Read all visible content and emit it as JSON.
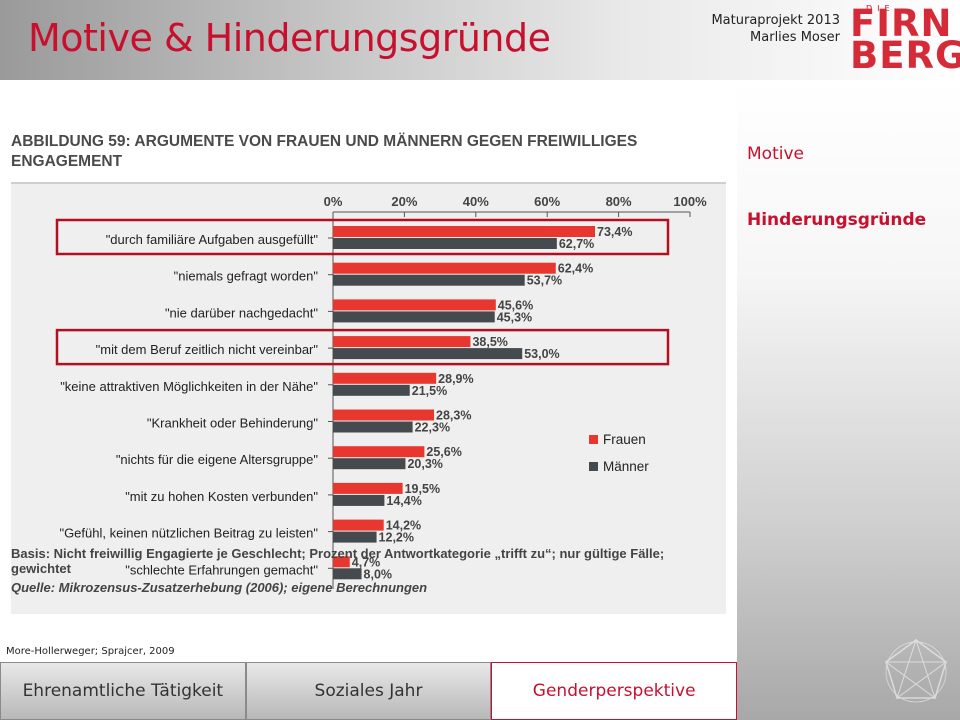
{
  "header": {
    "title": "Motive & Hinderungsgründe",
    "project_line1": "Maturaprojekt 2013",
    "project_line2": "Marlies Moser"
  },
  "logo": {
    "small_text": "DIE",
    "line1": "FIRN",
    "line2": "BERG"
  },
  "sidebar": {
    "items": [
      {
        "label": "Motive",
        "active": false
      },
      {
        "label": "Hinderungsgründe",
        "active": true
      }
    ]
  },
  "figure": {
    "title": "ABBILDUNG 59: ARGUMENTE VON FRAUEN UND MÄNNERN GEGEN FREIWILLIGES ENGAGEMENT",
    "basis": "Basis: Nicht freiwillig Engagierte je Geschlecht; Prozent der Antwortkategorie „trifft zu“; nur gültige Fälle; gewichtet",
    "quelle": "Quelle: Mikrozensus-Zusatzerhebung (2006); eigene Berechnungen",
    "credit": "More-Hollerweger; Sprajcer, 2009"
  },
  "chart_data": {
    "type": "bar",
    "orientation": "horizontal",
    "categories": [
      "\"durch familiäre Aufgaben ausgefüllt\"",
      "\"niemals gefragt worden\"",
      "\"nie darüber nachgedacht\"",
      "\"mit dem Beruf zeitlich nicht vereinbar\"",
      "\"keine attraktiven Möglichkeiten in der Nähe\"",
      "\"Krankheit oder Behinderung\"",
      "\"nichts für die eigene Altersgruppe\"",
      "\"mit zu hohen Kosten verbunden\"",
      "\"Gefühl, keinen nützlichen Beitrag zu leisten\"",
      "\"schlechte Erfahrungen gemacht\""
    ],
    "series": [
      {
        "name": "Frauen",
        "color": "#e8372f",
        "values": [
          73.4,
          62.4,
          45.6,
          38.5,
          28.9,
          28.3,
          25.6,
          19.5,
          14.2,
          4.7
        ],
        "labels": [
          "73,4%",
          "62,4%",
          "45,6%",
          "38,5%",
          "28,9%",
          "28,3%",
          "25,6%",
          "19,5%",
          "14,2%",
          "4,7%"
        ]
      },
      {
        "name": "Männer",
        "color": "#454a4f",
        "values": [
          62.7,
          53.7,
          45.3,
          53.0,
          21.5,
          22.3,
          20.3,
          14.4,
          12.2,
          8.0
        ],
        "labels": [
          "62,7%",
          "53,7%",
          "45,3%",
          "53,0%",
          "21,5%",
          "22,3%",
          "20,3%",
          "14,4%",
          "12,2%",
          "8,0%"
        ]
      }
    ],
    "xlim": [
      0,
      100
    ],
    "ticks": [
      "0%",
      "20%",
      "40%",
      "60%",
      "80%",
      "100%"
    ],
    "legend": "right",
    "highlighted_categories": [
      0,
      3
    ],
    "highlight_color": "#b01020"
  },
  "nav": {
    "tabs": [
      {
        "label": "Ehrenamtliche Tätigkeit",
        "active": false
      },
      {
        "label": "Soziales Jahr",
        "active": false
      },
      {
        "label": "Genderperspektive",
        "active": true
      }
    ]
  }
}
